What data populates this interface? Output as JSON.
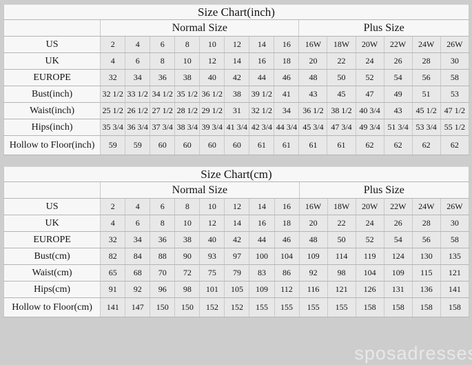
{
  "watermark": "sposadresses",
  "chart_data": [
    {
      "type": "table",
      "title": "Size Chart(inch)",
      "group_headers": [
        "Normal Size",
        "Plus Size"
      ],
      "rows": [
        {
          "label": "US",
          "normal": [
            "2",
            "4",
            "6",
            "8",
            "10",
            "12",
            "14",
            "16"
          ],
          "plus": [
            "16W",
            "18W",
            "20W",
            "22W",
            "24W",
            "26W"
          ]
        },
        {
          "label": "UK",
          "normal": [
            "4",
            "6",
            "8",
            "10",
            "12",
            "14",
            "16",
            "18"
          ],
          "plus": [
            "20",
            "22",
            "24",
            "26",
            "28",
            "30"
          ]
        },
        {
          "label": "EUROPE",
          "normal": [
            "32",
            "34",
            "36",
            "38",
            "40",
            "42",
            "44",
            "46"
          ],
          "plus": [
            "48",
            "50",
            "52",
            "54",
            "56",
            "58"
          ]
        },
        {
          "label": "Bust(inch)",
          "normal": [
            "32 1/2",
            "33 1/2",
            "34 1/2",
            "35 1/2",
            "36 1/2",
            "38",
            "39 1/2",
            "41"
          ],
          "plus": [
            "43",
            "45",
            "47",
            "49",
            "51",
            "53"
          ]
        },
        {
          "label": "Waist(inch)",
          "normal": [
            "25 1/2",
            "26 1/2",
            "27 1/2",
            "28 1/2",
            "29 1/2",
            "31",
            "32 1/2",
            "34"
          ],
          "plus": [
            "36 1/2",
            "38 1/2",
            "40 3/4",
            "43",
            "45 1/2",
            "47 1/2"
          ]
        },
        {
          "label": "Hips(inch)",
          "normal": [
            "35 3/4",
            "36 3/4",
            "37 3/4",
            "38 3/4",
            "39 3/4",
            "41 3/4",
            "42 3/4",
            "44 3/4"
          ],
          "plus": [
            "45 3/4",
            "47 3/4",
            "49 3/4",
            "51 3/4",
            "53 3/4",
            "55 1/2"
          ]
        },
        {
          "label": "Hollow to Floor(inch)",
          "normal": [
            "59",
            "59",
            "60",
            "60",
            "60",
            "60",
            "61",
            "61"
          ],
          "plus": [
            "61",
            "61",
            "62",
            "62",
            "62",
            "62"
          ]
        }
      ]
    },
    {
      "type": "table",
      "title": "Size Chart(cm)",
      "group_headers": [
        "Normal Size",
        "Plus Size"
      ],
      "rows": [
        {
          "label": "US",
          "normal": [
            "2",
            "4",
            "6",
            "8",
            "10",
            "12",
            "14",
            "16"
          ],
          "plus": [
            "16W",
            "18W",
            "20W",
            "22W",
            "24W",
            "26W"
          ]
        },
        {
          "label": "UK",
          "normal": [
            "4",
            "6",
            "8",
            "10",
            "12",
            "14",
            "16",
            "18"
          ],
          "plus": [
            "20",
            "22",
            "24",
            "26",
            "28",
            "30"
          ]
        },
        {
          "label": "EUROPE",
          "normal": [
            "32",
            "34",
            "36",
            "38",
            "40",
            "42",
            "44",
            "46"
          ],
          "plus": [
            "48",
            "50",
            "52",
            "54",
            "56",
            "58"
          ]
        },
        {
          "label": "Bust(cm)",
          "normal": [
            "82",
            "84",
            "88",
            "90",
            "93",
            "97",
            "100",
            "104"
          ],
          "plus": [
            "109",
            "114",
            "119",
            "124",
            "130",
            "135"
          ]
        },
        {
          "label": "Waist(cm)",
          "normal": [
            "65",
            "68",
            "70",
            "72",
            "75",
            "79",
            "83",
            "86"
          ],
          "plus": [
            "92",
            "98",
            "104",
            "109",
            "115",
            "121"
          ]
        },
        {
          "label": "Hips(cm)",
          "normal": [
            "91",
            "92",
            "96",
            "98",
            "101",
            "105",
            "109",
            "112"
          ],
          "plus": [
            "116",
            "121",
            "126",
            "131",
            "136",
            "141"
          ]
        },
        {
          "label": "Hollow to Floor(cm)",
          "normal": [
            "141",
            "147",
            "150",
            "150",
            "152",
            "152",
            "155",
            "155"
          ],
          "plus": [
            "155",
            "155",
            "158",
            "158",
            "158",
            "158"
          ]
        }
      ]
    }
  ],
  "colors": {
    "page_background": "#cdcdcd",
    "header_cell_background": "#f7f7f7",
    "data_cell_background": "#e8e8e8",
    "border": "#b5b5b5",
    "text": "#141414",
    "watermark": "#ffffff"
  }
}
